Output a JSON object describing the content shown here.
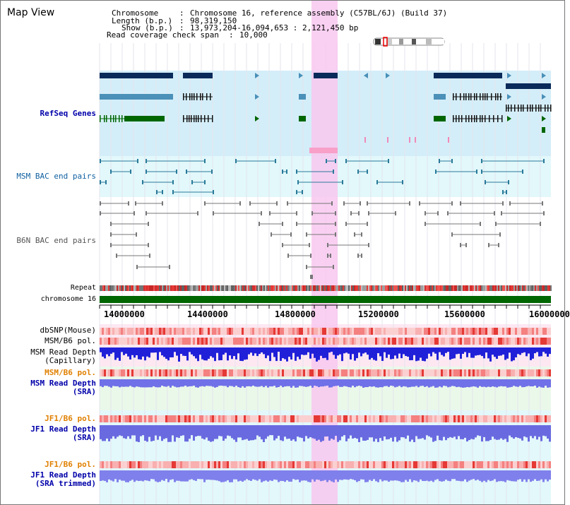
{
  "title": "Map View",
  "info": {
    "chromosome_label": "Chromosome",
    "chromosome_value": "Chromosome 16, reference assembly (C57BL/6J) (Build 37)",
    "length_label": "Length (b.p.)",
    "length_value": "98,319,150",
    "show_label": "Show (b.p.)",
    "show_value": "13,973,204-16,094,653 : 2,121,450 bp",
    "coverage_label": "Read coverage check span",
    "coverage_value": "10,000"
  },
  "tracks": {
    "refseq": "RefSeq Genes",
    "msm_bac": "MSM BAC end pairs",
    "b6n_bac": "B6N BAC end pairs",
    "repeat": "Repeat",
    "chromosome": "chromosome 16",
    "dbsnp": "dbSNP(Mouse)",
    "msm_b6_pol_1": "MSM/B6 pol.",
    "msm_read_depth_cap_1": "MSM Read Depth",
    "msm_read_depth_cap_2": "(Capillary)",
    "msm_b6_pol_2": "MSM/B6 pol.",
    "msm_read_depth_sra_1": "MSM Read Depth",
    "msm_read_depth_sra_2": "(SRA)",
    "jf1_b6_pol_1": "JF1/B6 pol.",
    "jf1_read_depth_sra_1": "JF1 Read Depth",
    "jf1_read_depth_sra_2": "(SRA)",
    "jf1_b6_pol_2": "JF1/B6 pol.",
    "jf1_read_depth_trim_1": "JF1 Read Depth",
    "jf1_read_depth_trim_2": "(SRA trimmed)"
  },
  "axis": {
    "ticks": [
      "14000000",
      "14400000",
      "14800000",
      "15200000",
      "15600000",
      "16000000"
    ]
  },
  "colors": {
    "refseq_bg": "#d4eef9",
    "bac_bg": "#e2f8fb",
    "highlight": "#f8c8f0",
    "gene_dark": "#0a2a5a",
    "gene_mid": "#4a90b8",
    "gene_green": "#006600",
    "chromosome_bar": "#006600",
    "depth_blue": "#3030e0",
    "pol_red": "#f04040"
  }
}
